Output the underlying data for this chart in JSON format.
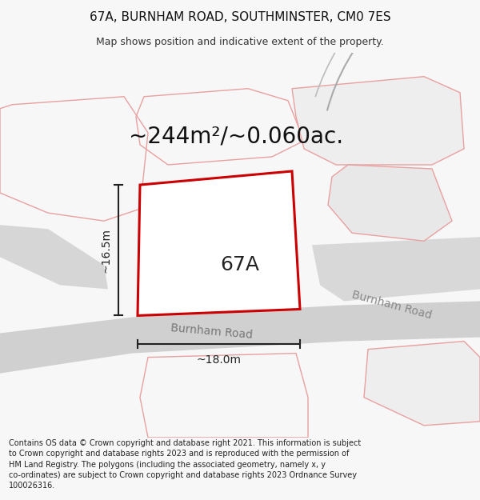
{
  "title": "67A, BURNHAM ROAD, SOUTHMINSTER, CM0 7ES",
  "subtitle": "Map shows position and indicative extent of the property.",
  "area_text": "~244m²/~0.060ac.",
  "label_67a": "67A",
  "dim_width": "~18.0m",
  "dim_height": "~16.5m",
  "road_label_1": "Burnham Road",
  "road_label_2": "Burnham Road",
  "footer": "Contains OS data © Crown copyright and database right 2021. This information is subject\nto Crown copyright and database rights 2023 and is reproduced with the permission of\nHM Land Registry. The polygons (including the associated geometry, namely x, y\nco-ordinates) are subject to Crown copyright and database rights 2023 Ordnance Survey\n100026316.",
  "bg_color": "#f7f7f7",
  "map_bg": "#ffffff",
  "road_gray": "#d0d0d0",
  "road_gray2": "#c8c8c8",
  "plot_edge": "#cc0000",
  "building_fill": "#d0d0d0",
  "pink_line": "#e8a0a0",
  "pink_fill": "#f5e8e8",
  "dim_color": "#222222",
  "label_color": "#555555",
  "title_fontsize": 11,
  "subtitle_fontsize": 9,
  "area_fontsize": 20,
  "label_fontsize": 18,
  "road_fontsize": 10,
  "dim_fontsize": 10,
  "footer_fontsize": 7
}
